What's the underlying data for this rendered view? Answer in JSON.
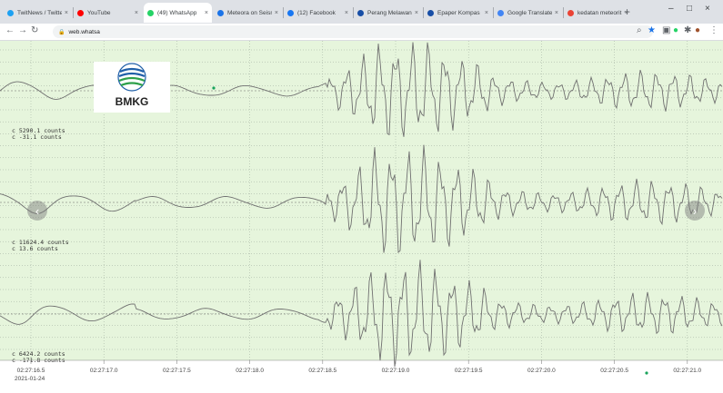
{
  "browser": {
    "tabs": [
      {
        "label": "TwitNews / Twitter",
        "icon": "twitter-icon",
        "color": "#1da1f2"
      },
      {
        "label": "YouTube",
        "icon": "youtube-icon",
        "color": "#ff0000"
      },
      {
        "label": "(49) WhatsApp",
        "icon": "whatsapp-icon",
        "color": "#25d366",
        "active": true
      },
      {
        "label": "Meteora on Seismogra",
        "icon": "arrow-icon",
        "color": "#1a73e8"
      },
      {
        "label": "(12) Facebook",
        "icon": "facebook-icon",
        "color": "#1877f2"
      },
      {
        "label": "Perang Melawan Pencu",
        "icon": "news-icon",
        "color": "#174ea6"
      },
      {
        "label": "Epaper Kompas",
        "icon": "news-icon",
        "color": "#174ea6"
      },
      {
        "label": "Google Translate",
        "icon": "translate-icon",
        "color": "#4285f4"
      },
      {
        "label": "kedatan meteorit gelon",
        "icon": "google-icon",
        "color": "#ea4335"
      }
    ],
    "new_tab": "+",
    "url": "web.whatsa",
    "window_controls": [
      "–",
      "□",
      "×"
    ]
  },
  "logo_text": "BMKG",
  "traces": [
    {
      "max_label": "5290.1 counts",
      "min_label": "-31.1 counts"
    },
    {
      "max_label": "11624.4 counts",
      "min_label": "13.6 counts"
    },
    {
      "max_label": "6424.2 counts",
      "min_label": "-171.8 counts"
    }
  ],
  "time_axis": {
    "ticks": [
      "02:27:16.5",
      "02:27:17.0",
      "02:27:17.5",
      "02:27:18.0",
      "02:27:18.5",
      "02:27:19.0",
      "02:27:19.5",
      "02:27:20.0",
      "02:27:20.5",
      "02:27:21.0"
    ],
    "date": "2021-01-24"
  },
  "colors": {
    "plot_bg": "#e6f5dc",
    "trace": "#707070",
    "grid": "#9aa79a"
  }
}
